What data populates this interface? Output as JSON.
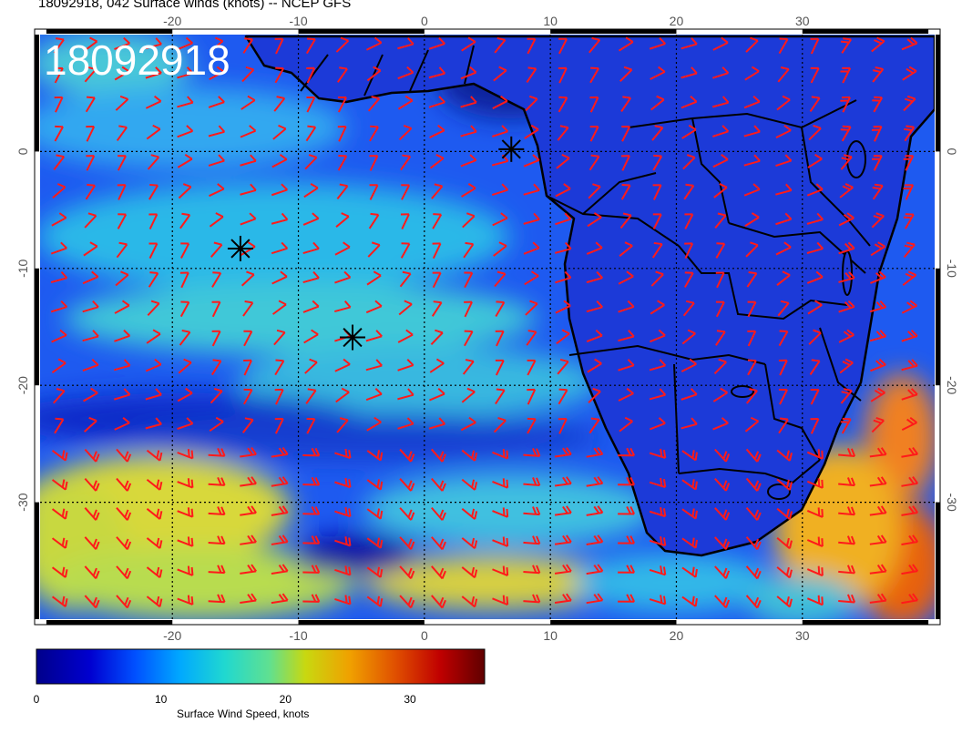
{
  "title": "18092918, 042 Surface winds (knots) -- NCEP GFS",
  "date_stamp": "18092918",
  "map": {
    "lon_ticks": [
      "-20",
      "-10",
      "0",
      "10",
      "20",
      "30"
    ],
    "lat_ticks": [
      "0",
      "-10",
      "-20",
      "-30"
    ],
    "lon_range": [
      -30.5,
      40.5
    ],
    "lat_range": [
      -40,
      10
    ],
    "grid": "dotted"
  },
  "colorbar": {
    "title": "Surface Wind Speed, knots",
    "ticks": [
      "0",
      "10",
      "20",
      "30"
    ],
    "range": [
      0,
      36
    ],
    "colors": [
      "#00008b",
      "#0000d0",
      "#0050ff",
      "#00a8ff",
      "#20d8d0",
      "#60e090",
      "#c8d810",
      "#f0a000",
      "#e05000",
      "#c00000",
      "#600000"
    ]
  },
  "markers": [
    {
      "name": "star",
      "lon": 6.9,
      "lat": 0.2
    },
    {
      "name": "star",
      "lon": -14.6,
      "lat": -8.3
    },
    {
      "name": "star",
      "lon": -5.7,
      "lat": -15.9
    }
  ],
  "colors": {
    "barb": "#ff1a1a",
    "ocean_base": "#1e5af0",
    "land_base": "#1c3ad8",
    "border": "#000000"
  }
}
